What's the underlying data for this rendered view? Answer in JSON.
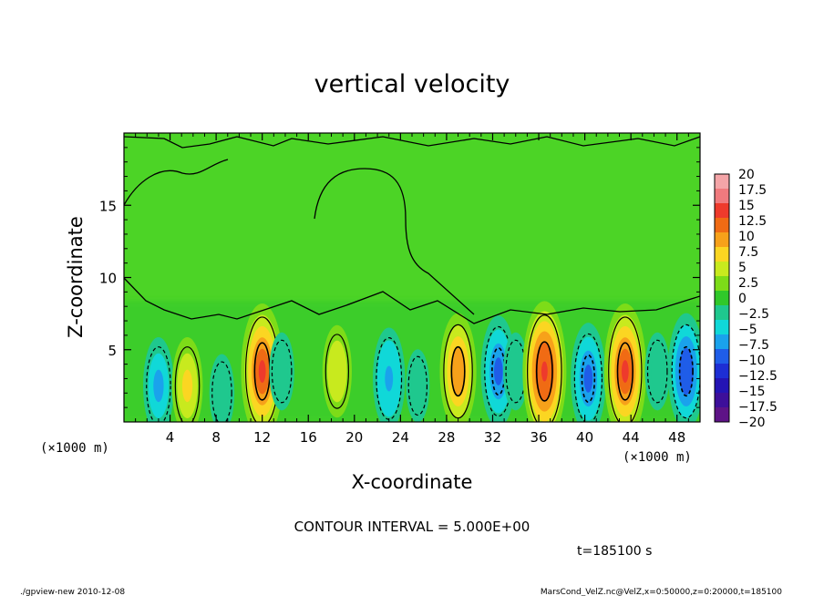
{
  "chart_data": {
    "type": "heatmap",
    "title": "vertical velocity",
    "xlabel": "X-coordinate",
    "ylabel": "Z-coordinate",
    "x_unit": "(×1000 m)",
    "y_unit": "(×1000 m)",
    "xlim": [
      0,
      50
    ],
    "ylim": [
      0,
      20
    ],
    "x_ticks": [
      "4",
      "8",
      "12",
      "16",
      "20",
      "24",
      "28",
      "32",
      "36",
      "40",
      "44",
      "48"
    ],
    "y_ticks": [
      "5",
      "10",
      "15"
    ],
    "contour_interval_text": "CONTOUR INTERVAL = 5.000E+00",
    "time_text": "t=185100 s",
    "colorbar": {
      "labels": [
        "20",
        "17.5",
        "15",
        "12.5",
        "10",
        "7.5",
        "5",
        "2.5",
        "0",
        "−2.5",
        "−5",
        "−7.5",
        "−10",
        "−12.5",
        "−15",
        "−17.5",
        "−20"
      ],
      "colors": [
        "#f4a5a8",
        "#f07a7e",
        "#ee3a2c",
        "#f06b14",
        "#f7a11a",
        "#fbd622",
        "#c8ea1e",
        "#7ddc18",
        "#30c82a",
        "#1fc88e",
        "#10d8d8",
        "#1aa2ec",
        "#1f5de8",
        "#1d2ed4",
        "#2414b4",
        "#3d0f9a",
        "#5e1387"
      ]
    },
    "cells": [
      {
        "x": 3,
        "z": 2.5,
        "w": -7
      },
      {
        "x": 5.5,
        "z": 2.5,
        "w": 7
      },
      {
        "x": 8.5,
        "z": 2.0,
        "w": -3
      },
      {
        "x": 12,
        "z": 3.5,
        "w": 15
      },
      {
        "x": 13.7,
        "z": 3.5,
        "w": -3
      },
      {
        "x": 18.5,
        "z": 3.5,
        "w": 6
      },
      {
        "x": 23,
        "z": 3.0,
        "w": -8
      },
      {
        "x": 25.5,
        "z": 2.5,
        "w": -2
      },
      {
        "x": 29,
        "z": 3.5,
        "w": 11
      },
      {
        "x": 32.5,
        "z": 3.5,
        "w": -10
      },
      {
        "x": 34,
        "z": 3.5,
        "w": -3
      },
      {
        "x": 36.5,
        "z": 3.5,
        "w": 16
      },
      {
        "x": 40.3,
        "z": 3.0,
        "w": -10
      },
      {
        "x": 43.5,
        "z": 3.5,
        "w": 15
      },
      {
        "x": 46.3,
        "z": 3.5,
        "w": -3
      },
      {
        "x": 48.8,
        "z": 3.5,
        "w": -11
      }
    ]
  },
  "footer": {
    "left": "./gpview-new  2010-12-08",
    "right": "MarsCond_VelZ.nc@VelZ,x=0:50000,z=0:20000,t=185100"
  }
}
